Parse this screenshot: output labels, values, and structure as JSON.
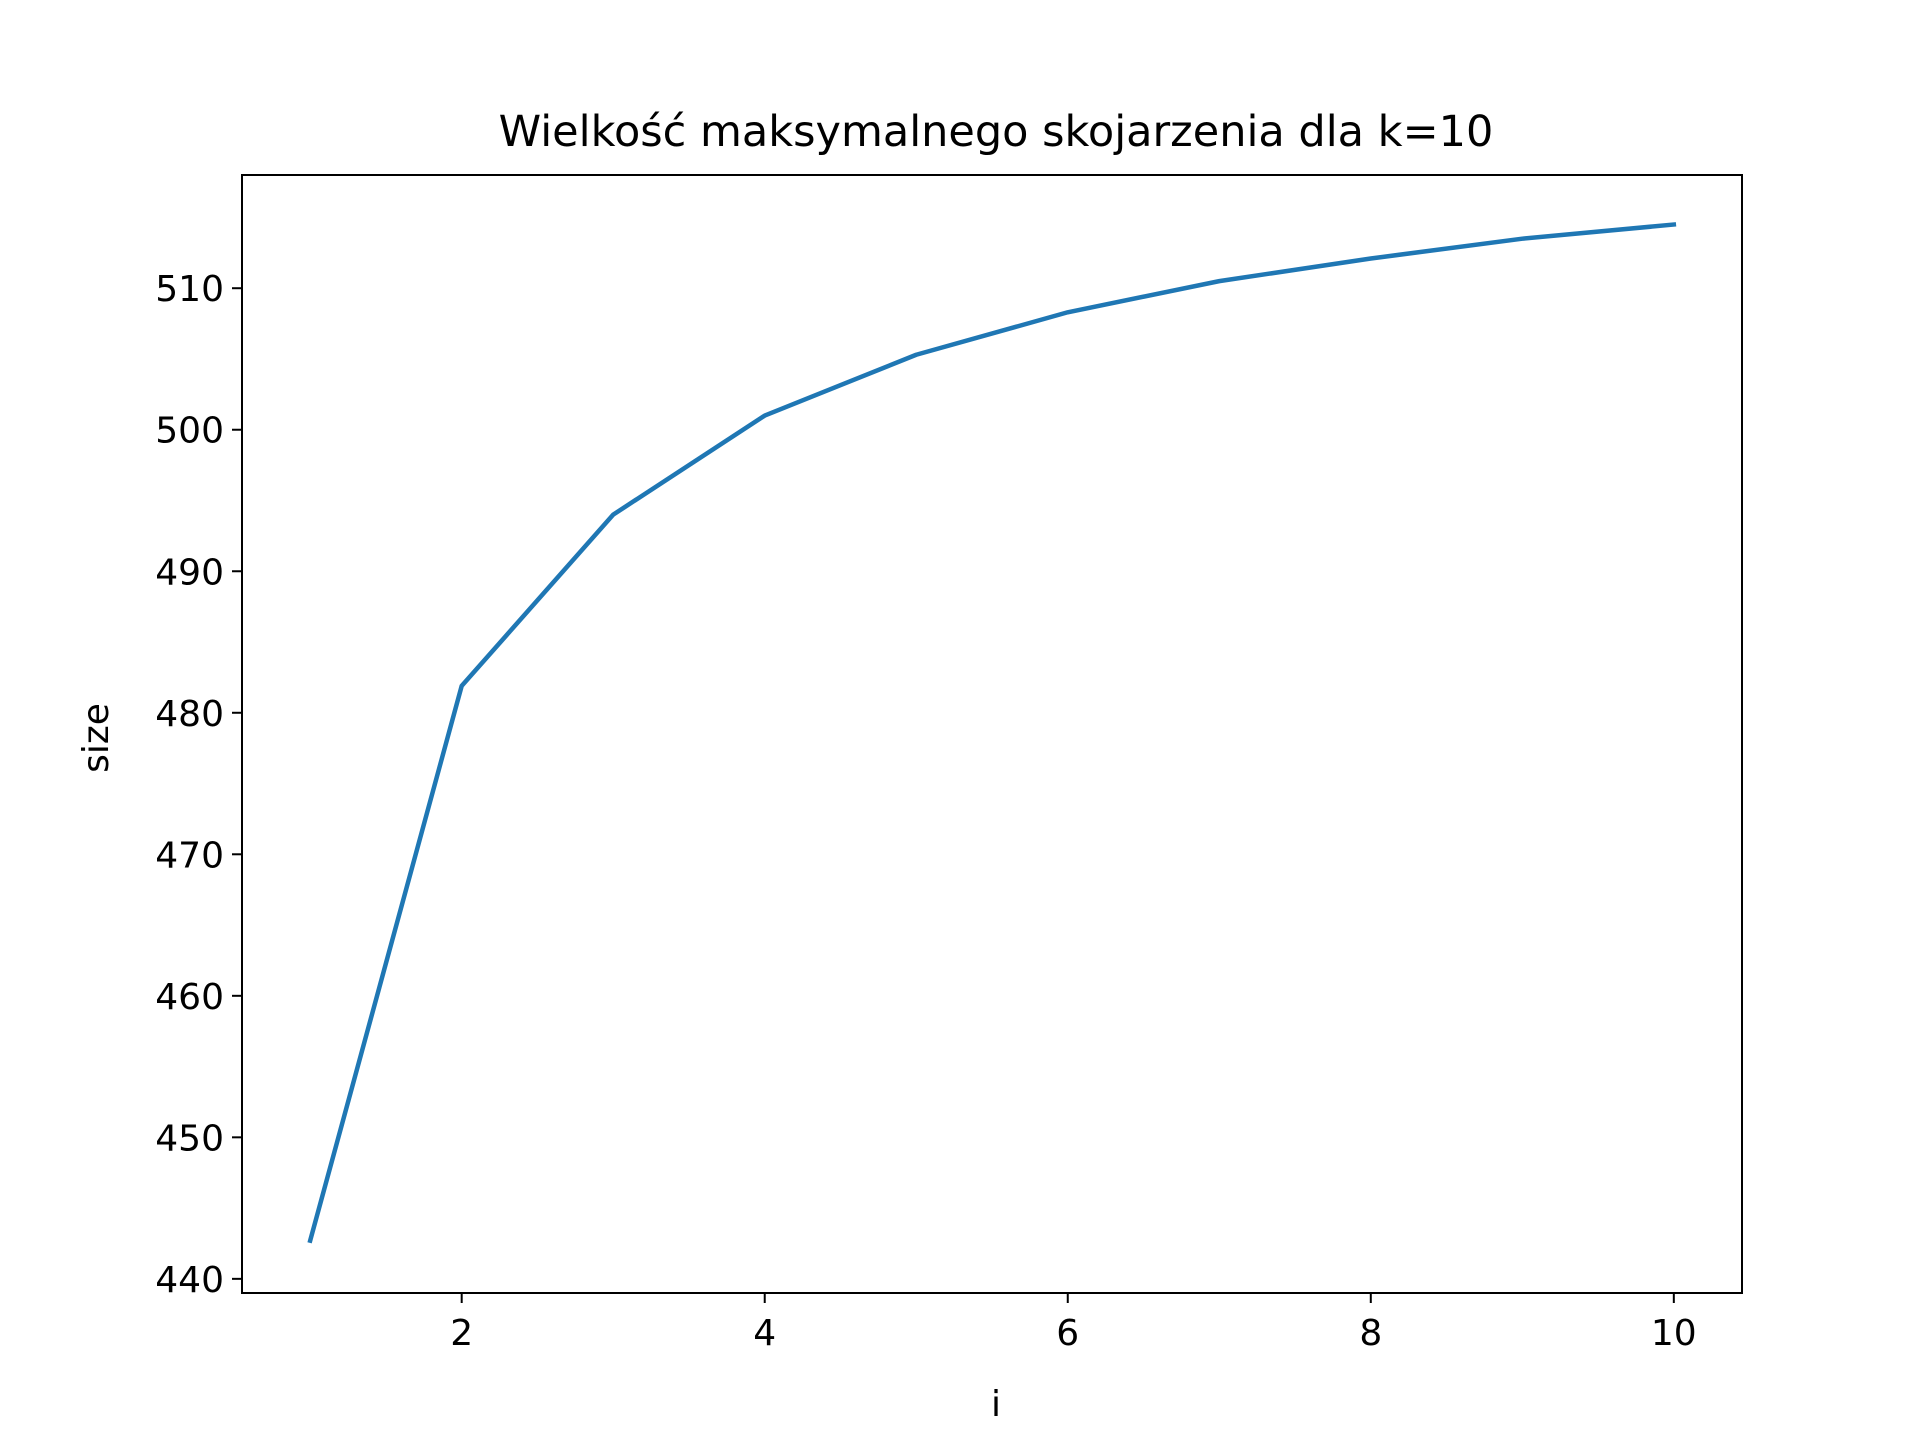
{
  "chart_data": {
    "type": "line",
    "title": "Wielkość maksymalnego skojarzenia dla k=10",
    "xlabel": "i",
    "ylabel": "size",
    "xlim": [
      0.55,
      10.45
    ],
    "ylim": [
      439,
      518
    ],
    "xticks": [
      2,
      4,
      6,
      8,
      10
    ],
    "yticks": [
      440,
      450,
      460,
      470,
      480,
      490,
      500,
      510
    ],
    "grid": false,
    "legend": "none",
    "series": [
      {
        "color": "#1f77b4",
        "x": [
          1,
          2,
          3,
          4,
          5,
          6,
          7,
          8,
          9,
          10
        ],
        "y": [
          442.7,
          481.9,
          494.0,
          501.0,
          505.3,
          508.3,
          510.5,
          512.1,
          513.5,
          514.5
        ]
      }
    ]
  }
}
